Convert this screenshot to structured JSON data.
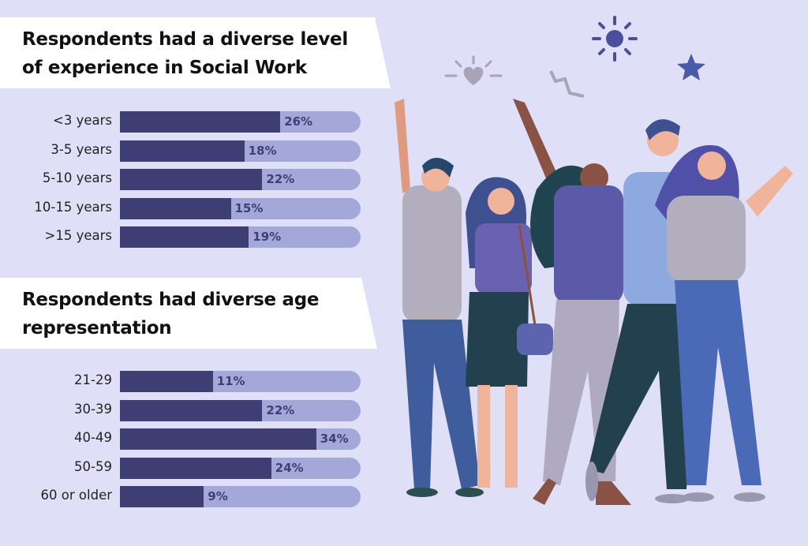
{
  "chart_data": [
    {
      "type": "bar",
      "orientation": "horizontal",
      "title": "Respondents had a diverse level of experience in Social Work",
      "categories": [
        "<3 years",
        "3-5 years",
        "5-10 years",
        "10-15 years",
        ">15 years"
      ],
      "values": [
        26,
        18,
        22,
        15,
        19
      ],
      "labels": [
        "26%",
        "18%",
        "22%",
        "15%",
        "19%"
      ]
    },
    {
      "type": "bar",
      "orientation": "horizontal",
      "title": "Respondents had diverse age representation",
      "categories": [
        "21-29",
        "30-39",
        "40-49",
        "50-59",
        "60 or older"
      ],
      "values": [
        11,
        22,
        34,
        24,
        9
      ],
      "labels": [
        "11%",
        "22%",
        "34%",
        "24%",
        "9%"
      ]
    }
  ],
  "titles": {
    "experience_line1": "Respondents had a diverse level",
    "experience_line2": "of experience in Social Work",
    "age_line1": "Respondents had diverse age",
    "age_line2": "representation"
  },
  "colors": {
    "background": "#dfe0f8",
    "bar": "#3e3e74",
    "track": "#a3a8d9"
  },
  "illustration": [
    "group-of-people-icon",
    "sun-icon",
    "star-icon",
    "heart-icon",
    "zigzag-icon"
  ]
}
